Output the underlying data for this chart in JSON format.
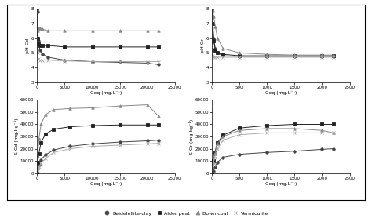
{
  "top_left": {
    "xlabel": "Ceq (mg.L⁻¹)",
    "ylabel": "pH Cd",
    "xlim": [
      0,
      25000
    ],
    "ylim": [
      3,
      8
    ],
    "yticks": [
      3,
      4,
      5,
      6,
      7,
      8
    ],
    "xticks": [
      0,
      5000,
      10000,
      15000,
      20000,
      25000
    ],
    "series": {
      "beidelellite": {
        "x": [
          0,
          50,
          200,
          500,
          1000,
          2000,
          5000,
          10000,
          15000,
          20000,
          22000
        ],
        "y": [
          8.0,
          7.8,
          5.8,
          5.2,
          4.9,
          4.7,
          4.5,
          4.4,
          4.35,
          4.3,
          4.2
        ]
      },
      "alder_peat": {
        "x": [
          0,
          50,
          200,
          500,
          1000,
          2000,
          5000,
          10000,
          15000,
          20000,
          22000
        ],
        "y": [
          8.0,
          6.0,
          5.6,
          5.5,
          5.5,
          5.5,
          5.4,
          5.4,
          5.4,
          5.4,
          5.4
        ]
      },
      "brown_coal": {
        "x": [
          0,
          50,
          200,
          500,
          1000,
          2000,
          5000,
          10000,
          15000,
          20000,
          22000
        ],
        "y": [
          8.0,
          6.5,
          6.7,
          6.7,
          6.6,
          6.5,
          6.5,
          6.5,
          6.5,
          6.5,
          6.5
        ]
      },
      "vermiculite": {
        "x": [
          0,
          50,
          200,
          500,
          1000,
          2000,
          5000,
          10000,
          15000,
          20000,
          22000
        ],
        "y": [
          8.0,
          5.0,
          4.6,
          4.5,
          4.5,
          4.5,
          4.45,
          4.4,
          4.4,
          4.4,
          4.4
        ]
      }
    }
  },
  "top_right": {
    "xlabel": "Ceq (mg.L⁻¹)",
    "ylabel": "pH Cr",
    "xlim": [
      0,
      2500
    ],
    "ylim": [
      3,
      8
    ],
    "yticks": [
      3,
      4,
      5,
      6,
      7,
      8
    ],
    "xticks": [
      0,
      500,
      1000,
      1500,
      2000,
      2500
    ],
    "series": {
      "beidelellite": {
        "x": [
          0,
          10,
          30,
          60,
          100,
          200,
          500,
          1000,
          1500,
          2000,
          2200
        ],
        "y": [
          8.0,
          7.5,
          6.0,
          5.3,
          5.0,
          4.8,
          4.75,
          4.75,
          4.75,
          4.75,
          4.75
        ]
      },
      "alder_peat": {
        "x": [
          0,
          10,
          30,
          60,
          100,
          200,
          500,
          1000,
          1500,
          2000,
          2200
        ],
        "y": [
          8.0,
          7.0,
          5.8,
          5.2,
          5.0,
          4.9,
          4.8,
          4.8,
          4.8,
          4.8,
          4.8
        ]
      },
      "brown_coal": {
        "x": [
          0,
          10,
          30,
          60,
          100,
          200,
          500,
          1000,
          1500,
          2000,
          2200
        ],
        "y": [
          8.0,
          7.9,
          7.5,
          6.8,
          6.0,
          5.3,
          5.0,
          4.9,
          4.85,
          4.85,
          4.85
        ]
      },
      "vermiculite": {
        "x": [
          0,
          10,
          30,
          60,
          100,
          200,
          500,
          1000,
          1500,
          2000,
          2200
        ],
        "y": [
          8.0,
          4.8,
          4.7,
          4.7,
          4.7,
          4.7,
          4.7,
          4.7,
          4.7,
          4.7,
          4.7
        ]
      }
    }
  },
  "bottom_left": {
    "xlabel": "Ceq (mg.L⁻¹)",
    "ylabel": "S Cd (mg.kg⁻¹)",
    "xlim": [
      0,
      25000
    ],
    "ylim": [
      0,
      60000
    ],
    "yticks": [
      0,
      10000,
      20000,
      30000,
      40000,
      50000,
      60000
    ],
    "xticks": [
      0,
      5000,
      10000,
      15000,
      20000,
      25000
    ],
    "series": {
      "beidelellite": {
        "x": [
          0,
          100,
          300,
          700,
          1500,
          3000,
          6000,
          10000,
          15000,
          20000,
          22000
        ],
        "y": [
          0,
          4000,
          7000,
          11000,
          15000,
          19000,
          22000,
          24000,
          25500,
          26500,
          27000
        ]
      },
      "alder_peat": {
        "x": [
          0,
          100,
          300,
          700,
          1500,
          3000,
          6000,
          10000,
          15000,
          20000,
          22000
        ],
        "y": [
          0,
          9000,
          16000,
          25000,
          32000,
          36000,
          38000,
          39000,
          39500,
          39500,
          39500
        ]
      },
      "brown_coal": {
        "x": [
          0,
          100,
          300,
          700,
          1500,
          3000,
          6000,
          10000,
          15000,
          20000,
          22000
        ],
        "y": [
          0,
          14000,
          28000,
          40000,
          48000,
          52000,
          53000,
          53500,
          55000,
          56000,
          47000
        ]
      },
      "vermiculite": {
        "x": [
          0,
          100,
          300,
          700,
          1500,
          3000,
          6000,
          10000,
          15000,
          20000,
          22000
        ],
        "y": [
          0,
          2500,
          5000,
          8000,
          12000,
          17000,
          20000,
          22000,
          23000,
          24000,
          24500
        ]
      }
    }
  },
  "bottom_right": {
    "xlabel": "Ceq (mg.L⁻¹)",
    "ylabel": "S Cr (mg.kg⁻¹)",
    "xlim": [
      0,
      2500
    ],
    "ylim": [
      0,
      60000
    ],
    "yticks": [
      0,
      10000,
      20000,
      30000,
      40000,
      50000,
      60000
    ],
    "xticks": [
      0,
      500,
      1000,
      1500,
      2000,
      2500
    ],
    "series": {
      "beidelellite": {
        "x": [
          0,
          20,
          50,
          100,
          200,
          500,
          1000,
          1500,
          2000,
          2200
        ],
        "y": [
          0,
          2000,
          5000,
          9000,
          13000,
          15500,
          17000,
          18000,
          19500,
          20000
        ]
      },
      "alder_peat": {
        "x": [
          0,
          20,
          50,
          100,
          200,
          500,
          1000,
          1500,
          2000,
          2200
        ],
        "y": [
          0,
          10000,
          17000,
          25000,
          31000,
          37000,
          39000,
          40000,
          40000,
          40000
        ]
      },
      "brown_coal": {
        "x": [
          0,
          20,
          50,
          100,
          200,
          500,
          1000,
          1500,
          2000,
          2200
        ],
        "y": [
          0,
          9000,
          16000,
          24000,
          30000,
          35000,
          36500,
          36500,
          35000,
          33000
        ]
      },
      "vermiculite": {
        "x": [
          0,
          20,
          50,
          100,
          200,
          500,
          1000,
          1500,
          2000,
          2200
        ],
        "y": [
          0,
          7000,
          13000,
          20000,
          27000,
          31500,
          33000,
          33000,
          33000,
          33000
        ]
      }
    }
  },
  "series_styles": {
    "beidelellite": {
      "color": "#444444",
      "marker": "o",
      "markersize": 2.5,
      "linewidth": 0.7
    },
    "alder_peat": {
      "color": "#222222",
      "marker": "s",
      "markersize": 2.5,
      "linewidth": 0.7
    },
    "brown_coal": {
      "color": "#888888",
      "marker": "^",
      "markersize": 2.5,
      "linewidth": 0.7
    },
    "vermiculite": {
      "color": "#aaaaaa",
      "marker": "x",
      "markersize": 2.5,
      "linewidth": 0.7
    }
  },
  "legend_labels": {
    "beidelellite": "Beidelellite-clay",
    "alder_peat": "Alder peat",
    "brown_coal": "Bown coal",
    "vermiculite": "Vermiculite"
  },
  "tick_fontsize": 4.0,
  "label_fontsize": 4.5,
  "legend_fontsize": 4.5,
  "figsize": [
    4.74,
    2.83
  ],
  "dpi": 100
}
